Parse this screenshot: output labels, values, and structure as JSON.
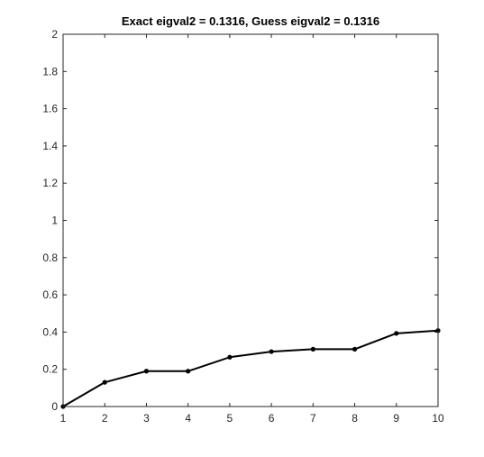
{
  "chart_data": {
    "type": "line",
    "title": "Exact eigval2 = 0.1316, Guess eigval2 = 0.1316",
    "xlabel": "",
    "ylabel": "",
    "x": [
      1,
      2,
      3,
      4,
      5,
      6,
      7,
      8,
      9,
      10
    ],
    "series": [
      {
        "values": [
          0,
          0.13,
          0.19,
          0.19,
          0.265,
          0.295,
          0.308,
          0.308,
          0.393,
          0.408
        ],
        "color": "#000000",
        "marker": "dot"
      }
    ],
    "xlim": [
      1,
      10
    ],
    "ylim": [
      0,
      2
    ],
    "xticks": [
      "1",
      "2",
      "3",
      "4",
      "5",
      "6",
      "7",
      "8",
      "9",
      "10"
    ],
    "yticks": [
      "0",
      "0.2",
      "0.4",
      "0.6",
      "0.8",
      "1",
      "1.2",
      "1.4",
      "1.6",
      "1.8",
      "2"
    ],
    "grid": false,
    "box": true,
    "legend": "none"
  }
}
